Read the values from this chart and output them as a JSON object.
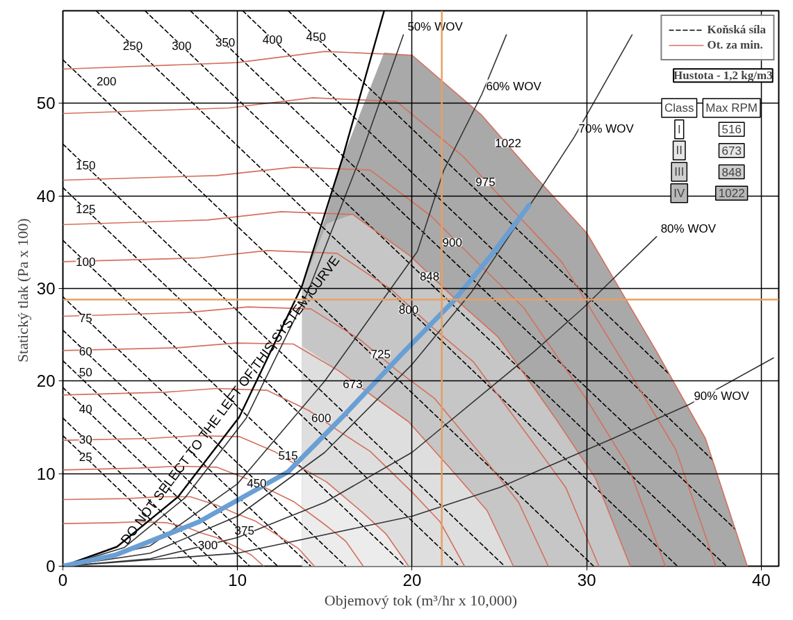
{
  "chart_data": {
    "type": "line",
    "xlabel": "Objemový tok (m³/hr x 10,000)",
    "ylabel": "Statický tlak  (Pa x 100)",
    "xlim": [
      0,
      41
    ],
    "ylim": [
      0,
      60
    ],
    "xticks": [
      0,
      10,
      20,
      30,
      40
    ],
    "yticks": [
      0,
      10,
      20,
      30,
      40,
      50
    ],
    "grid": true,
    "legend": "top right",
    "series": [
      {
        "type": "area",
        "color": "#a9a9a9",
        "x": [
          13.7,
          15,
          16,
          18.4,
          20,
          24,
          27,
          30,
          34,
          36.8,
          39.2
        ],
        "values": [
          30.3,
          37.5,
          44,
          55.5,
          55.2,
          48.7,
          42.2,
          36,
          23.2,
          13.8,
          0
        ]
      },
      {
        "type": "area",
        "color": "#c6c6c6",
        "x": [
          13.7,
          15.1,
          16.6,
          19.9,
          22.4,
          24.9,
          28.2,
          30.5,
          32.5
        ],
        "values": [
          30.3,
          37,
          38,
          33.5,
          29,
          24.8,
          16,
          9.5,
          0
        ]
      },
      {
        "type": "area",
        "color": "#dedede",
        "x": [
          13.7,
          15.8,
          17.8,
          19.8,
          22.4,
          24.3,
          25.8
        ],
        "values": [
          23.8,
          21.1,
          18.3,
          15.6,
          10.1,
          6,
          0
        ]
      },
      {
        "type": "area",
        "color": "#ececec",
        "x": [
          13.7,
          15.1,
          17.1,
          18.5,
          19.8
        ],
        "values": [
          10.4,
          9.1,
          5.9,
          3.5,
          0
        ]
      },
      {
        "name": "Koňská síla",
        "color": "#000000",
        "line_style": "dashed",
        "x": [
          1.9,
          35.2
        ],
        "values": [
          60,
          0
        ]
      },
      {
        "color": "#000000",
        "line_style": "dashed",
        "x": [
          4.7,
          38
        ],
        "values": [
          60,
          0
        ]
      },
      {
        "color": "#000000",
        "line_style": "dashed",
        "x": [
          7.3,
          38.5
        ],
        "values": [
          60,
          4
        ]
      },
      {
        "color": "#000000",
        "line_style": "dashed",
        "x": [
          10.3,
          37.2
        ],
        "values": [
          60,
          11.5
        ]
      },
      {
        "color": "#000000",
        "line_style": "dashed",
        "x": [
          12.9,
          34.7
        ],
        "values": [
          60,
          20.8
        ]
      },
      {
        "color": "#000000",
        "line_style": "dashed",
        "x": [
          0,
          30.4
        ],
        "values": [
          54.7,
          0
        ]
      },
      {
        "color": "#000000",
        "line_style": "dashed",
        "x": [
          0,
          25.3
        ],
        "values": [
          45.6,
          0
        ]
      },
      {
        "color": "#000000",
        "line_style": "dashed",
        "x": [
          0,
          22.7
        ],
        "values": [
          40.9,
          0
        ]
      },
      {
        "color": "#000000",
        "line_style": "dashed",
        "x": [
          0,
          19.6
        ],
        "values": [
          35.2,
          0
        ]
      },
      {
        "color": "#000000",
        "line_style": "dashed",
        "x": [
          0,
          16.2
        ],
        "values": [
          29.1,
          0
        ]
      },
      {
        "color": "#000000",
        "line_style": "dashed",
        "x": [
          0,
          14.2
        ],
        "values": [
          25.5,
          0
        ]
      },
      {
        "color": "#000000",
        "line_style": "dashed",
        "x": [
          0,
          12.3
        ],
        "values": [
          22.2,
          0
        ]
      },
      {
        "color": "#000000",
        "line_style": "dashed",
        "x": [
          0,
          10.7
        ],
        "values": [
          19.3,
          0
        ]
      },
      {
        "color": "#000000",
        "line_style": "dashed",
        "x": [
          0,
          8.9
        ],
        "values": [
          16,
          0
        ]
      },
      {
        "color": "#000000",
        "line_style": "dashed",
        "x": [
          0,
          7.8
        ],
        "values": [
          14.1,
          0
        ]
      },
      {
        "name": "Ot. za min.",
        "color": "#d4705c",
        "line_style": "solid",
        "x": [
          0,
          10,
          15,
          20,
          24,
          27,
          30,
          34,
          36.8,
          39.2
        ],
        "values": [
          53.7,
          54.4,
          55.6,
          55.2,
          48.7,
          42.2,
          36,
          23.2,
          13.8,
          0
        ]
      },
      {
        "color": "#d4705c",
        "line_style": "solid",
        "x": [
          0,
          9.5,
          14.3,
          19.1,
          22.9,
          25.8,
          28.6,
          32.4,
          35.1,
          37.4
        ],
        "values": [
          48.9,
          49.5,
          50.6,
          50.2,
          44.3,
          38.4,
          32.8,
          21.1,
          12.6,
          0
        ]
      },
      {
        "color": "#d4705c",
        "line_style": "solid",
        "x": [
          0,
          8.8,
          13.2,
          17.6,
          21.1,
          23.8,
          26.4,
          30,
          32.4,
          34.5
        ],
        "values": [
          41.7,
          42.2,
          43.1,
          42.8,
          37.8,
          32.7,
          27.9,
          18,
          10.7,
          0
        ]
      },
      {
        "color": "#d4705c",
        "line_style": "solid",
        "x": [
          0,
          8.3,
          12.5,
          16.6,
          19.9,
          22.4,
          24.9,
          28.2,
          30.5,
          32.5
        ],
        "values": [
          36.9,
          37.4,
          38.3,
          38,
          33.5,
          29,
          24.8,
          16,
          9.5,
          0
        ]
      },
      {
        "color": "#d4705c",
        "line_style": "solid",
        "x": [
          0,
          7.8,
          11.7,
          15.7,
          18.8,
          21.1,
          23.5,
          26.6,
          28.8,
          30.7
        ],
        "values": [
          32.9,
          33.3,
          34.1,
          33.8,
          29.9,
          25.9,
          22.1,
          14.2,
          8.5,
          0
        ]
      },
      {
        "color": "#d4705c",
        "line_style": "solid",
        "x": [
          0,
          7.1,
          10.6,
          14.2,
          17,
          19.1,
          21.3,
          24.1,
          26.1,
          27.8
        ],
        "values": [
          27,
          27.4,
          28,
          27.8,
          24.5,
          21.2,
          18.1,
          11.7,
          6.9,
          0
        ]
      },
      {
        "color": "#d4705c",
        "line_style": "solid",
        "x": [
          0,
          6.6,
          9.9,
          13.2,
          15.8,
          17.8,
          19.8,
          22.4,
          24.3,
          25.8
        ],
        "values": [
          23.3,
          23.6,
          24.1,
          24,
          21.1,
          18.3,
          15.6,
          10.1,
          6,
          0
        ]
      },
      {
        "color": "#d4705c",
        "line_style": "solid",
        "x": [
          0,
          5.9,
          8.8,
          11.7,
          14.1,
          15.8,
          17.6,
          20,
          21.6,
          23
        ],
        "values": [
          18.5,
          18.8,
          19.2,
          19,
          16.8,
          14.6,
          12.4,
          8,
          4.8,
          0
        ]
      },
      {
        "color": "#d4705c",
        "line_style": "solid",
        "x": [
          0,
          5,
          7.6,
          10.1,
          12.1,
          13.6,
          15.1,
          17.1,
          18.5,
          19.8
        ],
        "values": [
          13.6,
          13.8,
          14.1,
          14,
          12.4,
          10.7,
          9.1,
          5.9,
          3.5,
          0
        ]
      },
      {
        "color": "#d4705c",
        "line_style": "solid",
        "x": [
          0,
          4.4,
          6.6,
          8.8,
          10.6,
          11.9,
          13.2,
          15,
          16.2,
          17.2
        ],
        "values": [
          10.4,
          10.6,
          10.8,
          10.7,
          9.4,
          8.2,
          7,
          4.5,
          2.7,
          0
        ]
      },
      {
        "color": "#d4705c",
        "line_style": "solid",
        "x": [
          0,
          3.7,
          5.5,
          7.3,
          8.8,
          9.9,
          11,
          12.5,
          13.5,
          14.4
        ],
        "values": [
          7.2,
          7.3,
          7.5,
          7.5,
          6.6,
          5.7,
          4.9,
          3.1,
          1.9,
          0
        ]
      },
      {
        "color": "#d4705c",
        "line_style": "solid",
        "x": [
          0,
          2.9,
          4.4,
          5.9,
          7.1,
          7.9,
          8.8,
          10,
          10.8,
          11.5
        ],
        "values": [
          4.6,
          4.7,
          4.8,
          4.7,
          4.2,
          3.6,
          3.1,
          2,
          1.2,
          0
        ]
      },
      {
        "color": "#000000",
        "line_style": "solid",
        "x": [
          0,
          3.1,
          6.6,
          10.1,
          13.7,
          16,
          18.4
        ],
        "values": [
          0,
          2.1,
          7.5,
          16.1,
          30.3,
          44,
          60
        ]
      },
      {
        "color": "#333333",
        "line_style": "solid",
        "x": [
          0,
          3.5,
          7,
          10.5,
          14,
          17,
          19.5
        ],
        "values": [
          0,
          2,
          7.4,
          16,
          29.5,
          44,
          57.4
        ]
      },
      {
        "color": "#333333",
        "line_style": "solid",
        "x": [
          0,
          5,
          10,
          15,
          20.3,
          21.8,
          24,
          25.4
        ],
        "values": [
          0,
          2.2,
          8.9,
          20,
          34,
          42.7,
          51,
          57.4
        ]
      },
      {
        "color": "#333333",
        "line_style": "solid",
        "x": [
          0,
          5,
          10,
          15,
          20,
          23.4,
          27.1,
          29.3,
          32.6
        ],
        "values": [
          0,
          1.4,
          5.4,
          12.3,
          21.8,
          29.6,
          40,
          46.4,
          57.4
        ]
      },
      {
        "color": "#333333",
        "line_style": "solid",
        "x": [
          0,
          5,
          10,
          15,
          20,
          27,
          29.8,
          34
        ],
        "values": [
          0,
          0.8,
          3.1,
          6.9,
          12.3,
          23.2,
          27.9,
          35.6
        ]
      },
      {
        "color": "#333333",
        "line_style": "solid",
        "x": [
          0,
          10,
          20,
          25,
          31.5,
          35.9,
          40.7
        ],
        "values": [
          0,
          1.4,
          5.4,
          8.5,
          13.8,
          17.5,
          22.5
        ]
      },
      {
        "color": "#6a9fd4",
        "line_style": "solid",
        "x": [
          0,
          3,
          7.8,
          12.9,
          16,
          19.4,
          22.4,
          24.5,
          26.7
        ],
        "values": [
          0,
          1.2,
          4.8,
          10.2,
          16.1,
          22.9,
          28.7,
          33.5,
          39
        ]
      }
    ],
    "ref_lines": [
      {
        "axis": "x",
        "value": 21.7,
        "color": "#e8a060"
      },
      {
        "axis": "y",
        "value": 28.8,
        "color": "#e8a060"
      }
    ],
    "annotations": [
      {
        "text": "DO NOT SELECT TO THE LEFT OF THIS SYSTEM CURVE",
        "x": 9.6,
        "y": 18
      },
      {
        "text": "50% WOV",
        "x": 19.5,
        "y": 57.4
      },
      {
        "text": "60% WOV",
        "x": 24,
        "y": 51
      },
      {
        "text": "70% WOV",
        "x": 29.3,
        "y": 46.4
      },
      {
        "text": "80% WOV",
        "x": 34,
        "y": 35.6
      },
      {
        "text": "90% WOV",
        "x": 35.9,
        "y": 17.5
      },
      {
        "text": "250",
        "x": 4,
        "y": 56.2
      },
      {
        "text": "300",
        "x": 6.8,
        "y": 56.2
      },
      {
        "text": "350",
        "x": 9.3,
        "y": 56.6
      },
      {
        "text": "400",
        "x": 12,
        "y": 56.9
      },
      {
        "text": "450",
        "x": 14.5,
        "y": 57.2
      },
      {
        "text": "200",
        "x": 2.5,
        "y": 52.4
      },
      {
        "text": "150",
        "x": 1.3,
        "y": 43.3
      },
      {
        "text": "125",
        "x": 1.3,
        "y": 38.6
      },
      {
        "text": "100",
        "x": 1.3,
        "y": 32.9
      },
      {
        "text": "75",
        "x": 1.3,
        "y": 26.8
      },
      {
        "text": "60",
        "x": 1.3,
        "y": 23.2
      },
      {
        "text": "50",
        "x": 1.3,
        "y": 21
      },
      {
        "text": "40",
        "x": 1.3,
        "y": 17
      },
      {
        "text": "30",
        "x": 1.3,
        "y": 13.7
      },
      {
        "text": "25",
        "x": 1.3,
        "y": 11.8
      },
      {
        "text": "1022",
        "x": 25.5,
        "y": 45.7
      },
      {
        "text": "975",
        "x": 24.2,
        "y": 41.5
      },
      {
        "text": "900",
        "x": 22.3,
        "y": 35
      },
      {
        "text": "848",
        "x": 21,
        "y": 31.3
      },
      {
        "text": "800",
        "x": 19.8,
        "y": 27.7
      },
      {
        "text": "725",
        "x": 18.2,
        "y": 22.9
      },
      {
        "text": "673",
        "x": 16.6,
        "y": 19.7
      },
      {
        "text": "600",
        "x": 14.8,
        "y": 16
      },
      {
        "text": "515",
        "x": 12.9,
        "y": 12
      },
      {
        "text": "450",
        "x": 11.1,
        "y": 9
      },
      {
        "text": "375",
        "x": 10.4,
        "y": 3.9
      },
      {
        "text": "300",
        "x": 8.3,
        "y": 2.3
      },
      "Hustota - 1,2 kg/m3",
      "Class",
      "Max RPM",
      "I",
      "516",
      "II",
      "673",
      "III",
      "848",
      "IV",
      "1022"
    ]
  }
}
